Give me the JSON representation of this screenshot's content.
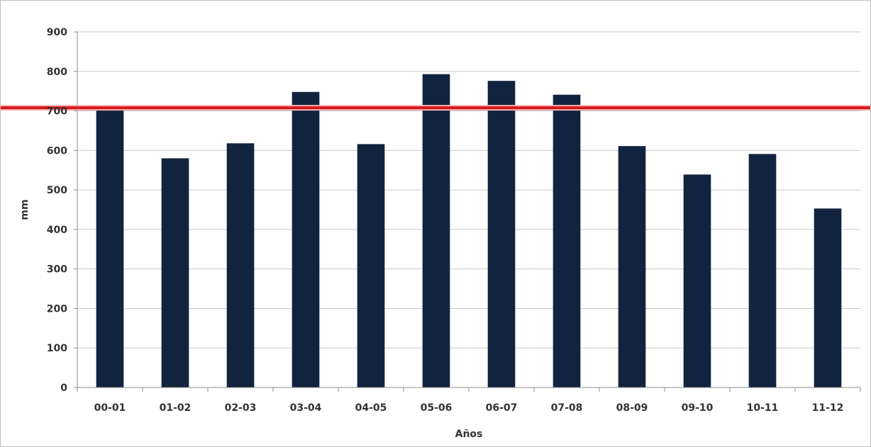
{
  "chart_data": {
    "type": "bar",
    "title": "",
    "xlabel": "Años",
    "ylabel": "mm",
    "categories": [
      "00-01",
      "01-02",
      "02-03",
      "03-04",
      "04-05",
      "05-06",
      "06-07",
      "07-08",
      "08-09",
      "09-10",
      "10-11",
      "11-12"
    ],
    "values": [
      705,
      580,
      618,
      748,
      616,
      793,
      776,
      741,
      611,
      539,
      591,
      453
    ],
    "ylim": [
      0,
      900
    ],
    "yticks": [
      0,
      100,
      200,
      300,
      400,
      500,
      600,
      700,
      800,
      900
    ],
    "grid": "horizontal",
    "reference_line": {
      "value": 708,
      "color": "#d7191c"
    },
    "bar_color": "#12233f",
    "legend": "none"
  }
}
